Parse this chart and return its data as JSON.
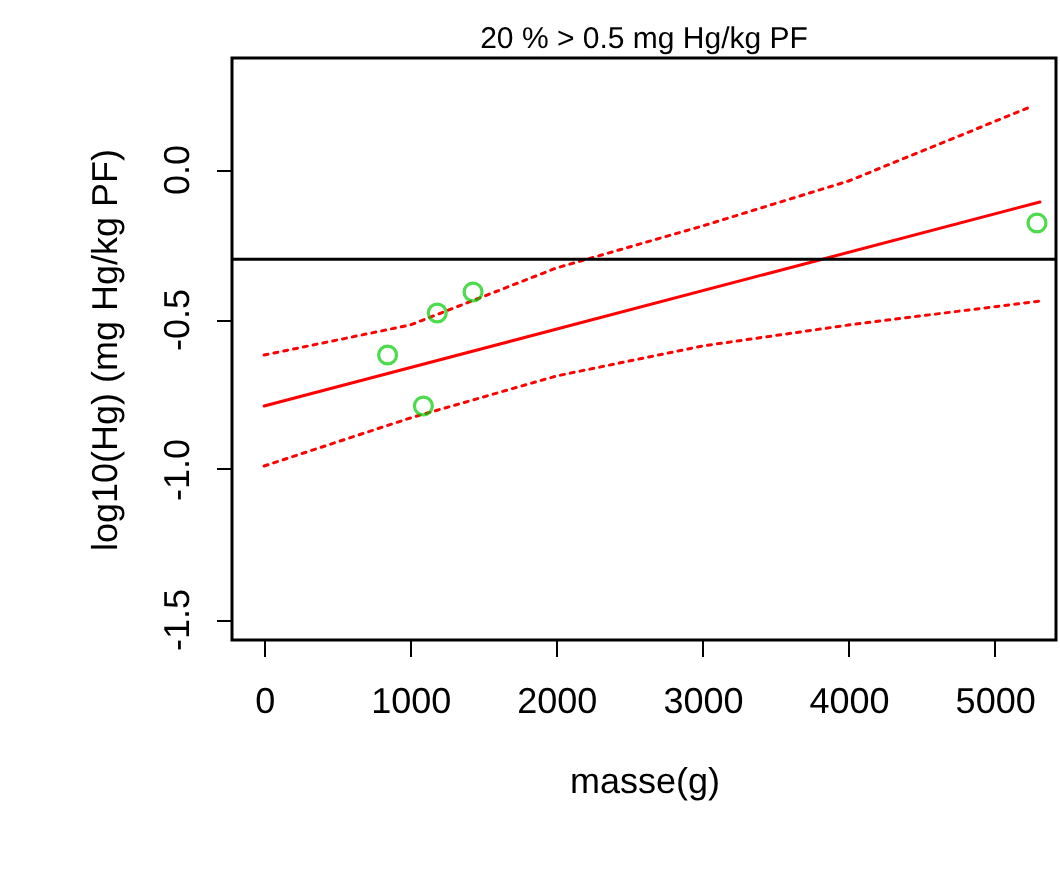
{
  "chart_data": {
    "type": "line",
    "title": "20 % >  0.5 mg Hg/kg PF",
    "xlabel": "masse(g)",
    "ylabel": "log10(Hg) (mg Hg/kg PF)",
    "xlim": [
      -220,
      5420
    ],
    "ylim": [
      -1.57,
      0.37
    ],
    "xticks": [
      0,
      1000,
      2000,
      3000,
      4000,
      5000
    ],
    "yticks": [
      {
        "value": -1.5,
        "label": "-1.5"
      },
      {
        "value": -1,
        "label": "-1.0"
      },
      {
        "value": -0.5,
        "label": "-0.5"
      },
      {
        "value": 0,
        "label": "0.0"
      }
    ],
    "grid": false,
    "ref_lines": [
      {
        "axis": "y",
        "value": -0.301,
        "color": "#000000"
      }
    ],
    "series": [
      {
        "color": "#ff0000",
        "line_style": "dotted",
        "x": [
          0,
          1000,
          2000,
          3000,
          4000,
          5260
        ],
        "values": [
          -0.62,
          -0.52,
          -0.33,
          -0.19,
          -0.04,
          0.21
        ]
      },
      {
        "color": "#ff0000",
        "line_style": "solid",
        "x": [
          0,
          5310
        ],
        "values": [
          -0.79,
          -0.11
        ]
      },
      {
        "color": "#ff0000",
        "line_style": "dotted",
        "x": [
          0,
          1000,
          2000,
          3000,
          4000,
          5310
        ],
        "values": [
          -0.99,
          -0.83,
          -0.69,
          -0.59,
          -0.52,
          -0.44
        ]
      },
      {
        "type": "scatter",
        "color": "#00cc00",
        "marker": "circle",
        "x": [
          845,
          1185,
          1430,
          1090,
          5290
        ],
        "values": [
          -0.62,
          -0.48,
          -0.41,
          -0.79,
          -0.18
        ]
      }
    ]
  }
}
